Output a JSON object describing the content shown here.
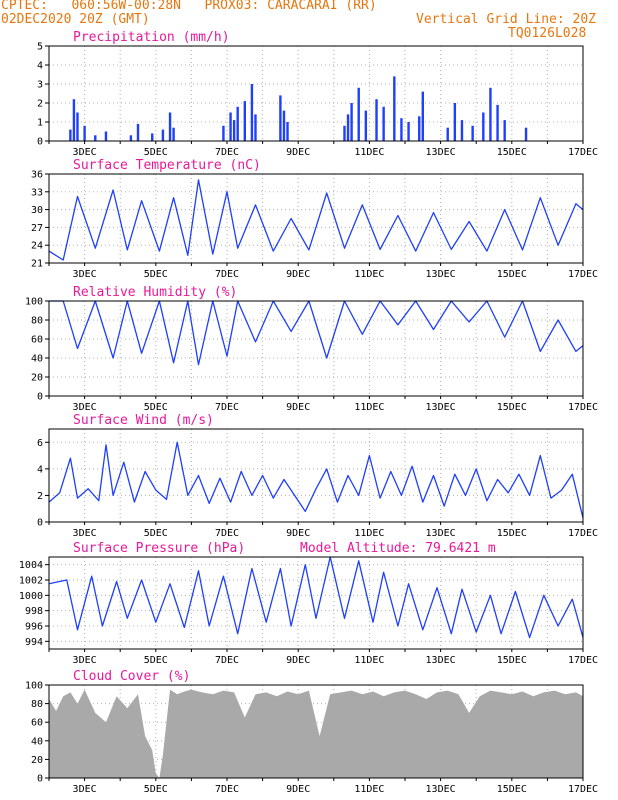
{
  "header": {
    "line1_left": "CPTEC:   060:56W-00:28N   PROX03: CARACARAI (RR)",
    "line2_left": "02DEC2020 20Z (GMT)",
    "line2_right": "Vertical Grid Line: 20Z",
    "line3_right": "TQ0126L028"
  },
  "colors": {
    "header": "#e8760e",
    "panel_title": "#e8199a",
    "series": "#1f3fff",
    "cloud": "#a9a9a9",
    "grid": "#b0b0b0"
  },
  "x_axis": {
    "tick_labels": [
      "3DEC",
      "5DEC",
      "7DEC",
      "9DEC",
      "11DEC",
      "13DEC",
      "15DEC",
      "17DEC"
    ]
  },
  "chart_data": [
    {
      "type": "bar",
      "title": "Precipitation (mm/h)",
      "ylim": [
        0,
        5
      ],
      "yticks": [
        "0",
        "1",
        "2",
        "3",
        "4",
        "5"
      ],
      "x": [
        2.6,
        2.7,
        2.8,
        3.0,
        3.3,
        3.6,
        4.3,
        4.5,
        4.9,
        5.2,
        5.4,
        5.5,
        6.9,
        7.1,
        7.2,
        7.3,
        7.5,
        7.7,
        7.8,
        8.5,
        8.6,
        8.7,
        10.3,
        10.4,
        10.5,
        10.7,
        10.9,
        11.2,
        11.4,
        11.7,
        11.9,
        12.1,
        12.4,
        12.5,
        13.2,
        13.4,
        13.6,
        13.9,
        14.2,
        14.4,
        14.6,
        14.8,
        15.4
      ],
      "values": [
        0.6,
        2.2,
        1.5,
        0.8,
        0.3,
        0.5,
        0.3,
        0.9,
        0.4,
        0.6,
        1.5,
        0.7,
        0.8,
        1.5,
        1.1,
        1.8,
        2.1,
        3.0,
        1.4,
        2.4,
        1.6,
        1.0,
        0.8,
        1.4,
        2.0,
        2.8,
        1.6,
        2.2,
        1.8,
        3.4,
        1.2,
        1.0,
        1.3,
        2.6,
        0.7,
        2.0,
        1.1,
        0.8,
        1.5,
        2.8,
        1.9,
        1.1,
        0.7
      ]
    },
    {
      "type": "line",
      "title": "Surface Temperature (nC)",
      "ylim": [
        21,
        36
      ],
      "yticks": [
        "21",
        "24",
        "27",
        "30",
        "33",
        "36"
      ],
      "x": [
        2.0,
        2.4,
        2.8,
        3.3,
        3.8,
        4.2,
        4.6,
        5.1,
        5.5,
        5.9,
        6.2,
        6.6,
        7.0,
        7.3,
        7.8,
        8.3,
        8.8,
        9.3,
        9.8,
        10.3,
        10.8,
        11.3,
        11.8,
        12.3,
        12.8,
        13.3,
        13.8,
        14.3,
        14.8,
        15.3,
        15.8,
        16.3,
        16.8,
        17.0
      ],
      "values": [
        23.0,
        21.5,
        32.2,
        23.5,
        33.3,
        23.2,
        31.5,
        23.0,
        32.0,
        22.3,
        35.0,
        22.5,
        33.0,
        23.5,
        30.8,
        23.0,
        28.5,
        23.2,
        32.8,
        23.5,
        30.8,
        23.3,
        29.0,
        23.0,
        29.5,
        23.3,
        28.0,
        23.0,
        30.0,
        23.2,
        32.0,
        24.0,
        31.0,
        30.0
      ]
    },
    {
      "type": "line",
      "title": "Relative Humidity (%)",
      "ylim": [
        0,
        100
      ],
      "yticks": [
        "0",
        "20",
        "40",
        "60",
        "80",
        "100"
      ],
      "x": [
        2.0,
        2.4,
        2.8,
        3.3,
        3.8,
        4.2,
        4.6,
        5.1,
        5.5,
        5.9,
        6.2,
        6.6,
        7.0,
        7.3,
        7.8,
        8.3,
        8.8,
        9.3,
        9.8,
        10.3,
        10.8,
        11.3,
        11.8,
        12.3,
        12.8,
        13.3,
        13.8,
        14.3,
        14.8,
        15.3,
        15.8,
        16.3,
        16.8,
        17.0
      ],
      "values": [
        100,
        100,
        50,
        100,
        40,
        100,
        45,
        100,
        35,
        100,
        33,
        100,
        42,
        100,
        57,
        100,
        68,
        100,
        40,
        100,
        65,
        100,
        75,
        100,
        70,
        100,
        78,
        100,
        62,
        100,
        47,
        80,
        47,
        53
      ]
    },
    {
      "type": "line",
      "title": "Surface Wind (m/s)",
      "ylim": [
        0,
        7
      ],
      "yticks": [
        "0",
        "2",
        "4",
        "6"
      ],
      "x": [
        2.0,
        2.3,
        2.6,
        2.8,
        3.1,
        3.4,
        3.6,
        3.8,
        4.1,
        4.4,
        4.7,
        5.0,
        5.3,
        5.6,
        5.9,
        6.2,
        6.5,
        6.8,
        7.1,
        7.4,
        7.7,
        8.0,
        8.3,
        8.6,
        8.9,
        9.2,
        9.5,
        9.8,
        10.1,
        10.4,
        10.7,
        11.0,
        11.3,
        11.6,
        11.9,
        12.2,
        12.5,
        12.8,
        13.1,
        13.4,
        13.7,
        14.0,
        14.3,
        14.6,
        14.9,
        15.2,
        15.5,
        15.8,
        16.1,
        16.4,
        16.7,
        17.0
      ],
      "values": [
        1.5,
        2.2,
        4.8,
        1.8,
        2.5,
        1.6,
        5.8,
        2.0,
        4.5,
        1.5,
        3.8,
        2.4,
        1.7,
        6.0,
        2.0,
        3.5,
        1.4,
        3.3,
        1.5,
        3.8,
        2.0,
        3.5,
        1.8,
        3.2,
        2.0,
        0.8,
        2.5,
        4.0,
        1.5,
        3.5,
        2.0,
        5.0,
        1.8,
        3.8,
        2.0,
        4.2,
        1.5,
        3.5,
        1.2,
        3.6,
        2.0,
        4.0,
        1.6,
        3.2,
        2.2,
        3.6,
        2.0,
        5.0,
        1.8,
        2.4,
        3.6,
        0.3
      ]
    },
    {
      "type": "line",
      "title": "Surface Pressure (hPa)",
      "annotation": "Model Altitude: 79.6421 m",
      "ylim": [
        993,
        1005
      ],
      "yticks": [
        "994",
        "996",
        "998",
        "1000",
        "1002",
        "1004"
      ],
      "x": [
        2.0,
        2.5,
        2.8,
        3.2,
        3.5,
        3.9,
        4.2,
        4.6,
        5.0,
        5.4,
        5.8,
        6.2,
        6.5,
        6.9,
        7.3,
        7.7,
        8.1,
        8.5,
        8.8,
        9.2,
        9.5,
        9.9,
        10.3,
        10.7,
        11.1,
        11.4,
        11.8,
        12.1,
        12.5,
        12.9,
        13.3,
        13.6,
        14.0,
        14.4,
        14.7,
        15.1,
        15.5,
        15.9,
        16.3,
        16.7,
        17.0
      ],
      "values": [
        1001.5,
        1002.0,
        995.5,
        1002.5,
        996.0,
        1001.8,
        997.0,
        1002.0,
        996.5,
        1001.5,
        995.8,
        1003.2,
        996.0,
        1002.5,
        995.0,
        1003.5,
        996.5,
        1003.5,
        996.0,
        1004.0,
        997.0,
        1005.0,
        997.0,
        1004.5,
        996.5,
        1003.0,
        996.0,
        1001.5,
        995.5,
        1001.0,
        995.0,
        1000.8,
        995.2,
        1000.0,
        995.0,
        1000.5,
        994.5,
        1000.0,
        996.0,
        999.5,
        994.5
      ]
    },
    {
      "type": "area",
      "title": "Cloud Cover (%)",
      "ylim": [
        0,
        100
      ],
      "yticks": [
        "0",
        "20",
        "40",
        "60",
        "80",
        "100"
      ],
      "x": [
        2.0,
        2.2,
        2.4,
        2.6,
        2.8,
        3.0,
        3.3,
        3.6,
        3.9,
        4.2,
        4.5,
        4.7,
        4.9,
        5.0,
        5.1,
        5.2,
        5.4,
        5.6,
        5.8,
        6.0,
        6.3,
        6.6,
        6.9,
        7.2,
        7.5,
        7.8,
        8.1,
        8.4,
        8.7,
        9.0,
        9.3,
        9.6,
        9.9,
        10.2,
        10.5,
        10.8,
        11.1,
        11.4,
        11.7,
        12.0,
        12.3,
        12.6,
        12.9,
        13.2,
        13.5,
        13.8,
        14.1,
        14.4,
        14.7,
        15.0,
        15.3,
        15.6,
        15.9,
        16.2,
        16.5,
        16.8,
        17.0
      ],
      "values": [
        85,
        72,
        88,
        92,
        80,
        95,
        70,
        60,
        88,
        75,
        90,
        45,
        30,
        5,
        0,
        25,
        95,
        90,
        93,
        95,
        92,
        90,
        94,
        92,
        65,
        90,
        92,
        88,
        93,
        90,
        94,
        45,
        90,
        92,
        94,
        90,
        93,
        88,
        92,
        94,
        90,
        85,
        92,
        94,
        90,
        70,
        88,
        94,
        92,
        90,
        93,
        88,
        92,
        94,
        90,
        92,
        88
      ]
    }
  ]
}
